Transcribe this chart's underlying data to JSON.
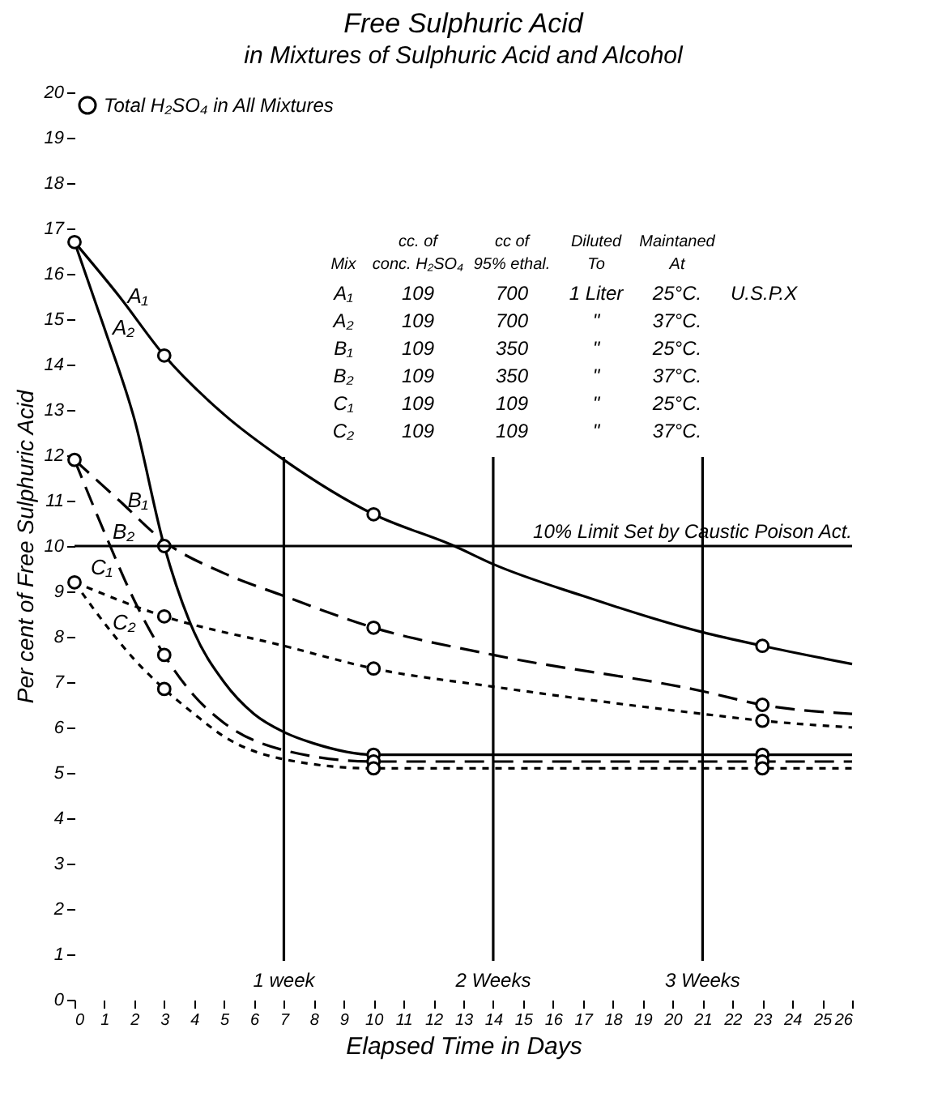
{
  "chart_data": {
    "type": "line",
    "title": "Free Sulphuric Acid",
    "subtitle": "in Mixtures of Sulphuric Acid and Alcohol",
    "xlabel": "Elapsed Time in Days",
    "ylabel": "Per cent of Free Sulphuric Acid",
    "xlim": [
      0,
      26
    ],
    "xticks": [
      0,
      1,
      2,
      3,
      4,
      5,
      6,
      7,
      8,
      9,
      10,
      11,
      12,
      13,
      14,
      15,
      16,
      17,
      18,
      19,
      20,
      21,
      22,
      23,
      24,
      25,
      26
    ],
    "ylim": [
      0,
      20
    ],
    "yticks": [
      0,
      1,
      2,
      3,
      4,
      5,
      6,
      7,
      8,
      9,
      10,
      11,
      12,
      13,
      14,
      15,
      16,
      17,
      18,
      19,
      20
    ],
    "grid": false,
    "legend": "top left",
    "series": [
      {
        "name": "A₁",
        "color": "#000000",
        "line_style": "solid",
        "x": [
          0,
          1.5,
          3,
          5,
          7,
          10,
          12.7,
          14,
          17,
          21,
          23,
          26
        ],
        "values": [
          16.7,
          15.5,
          14.2,
          12.9,
          11.9,
          10.7,
          10.0,
          9.6,
          8.9,
          8.1,
          7.8,
          7.4
        ]
      },
      {
        "name": "A₂",
        "color": "#000000",
        "line_style": "solid",
        "x": [
          0,
          1,
          2,
          3,
          4,
          5,
          6,
          7,
          8,
          10,
          14,
          23,
          26
        ],
        "values": [
          16.7,
          14.8,
          12.8,
          10.0,
          8.1,
          7.0,
          6.3,
          5.9,
          5.65,
          5.4,
          5.4,
          5.4,
          5.4
        ]
      },
      {
        "name": "B₁",
        "color": "#000000",
        "line_style": "dashed",
        "x": [
          0,
          1.5,
          3,
          5,
          7,
          10,
          14,
          21,
          23,
          26
        ],
        "values": [
          11.9,
          11.0,
          10.1,
          9.4,
          8.9,
          8.2,
          7.6,
          6.8,
          6.5,
          6.3
        ]
      },
      {
        "name": "B₂",
        "color": "#000000",
        "line_style": "dashed",
        "x": [
          0,
          1,
          2,
          3,
          4,
          5,
          7,
          10,
          14,
          23,
          26
        ],
        "values": [
          11.9,
          10.3,
          8.8,
          7.6,
          6.7,
          6.1,
          5.5,
          5.25,
          5.25,
          5.25,
          5.25
        ]
      },
      {
        "name": "C₁",
        "color": "#000000",
        "line_style": "dotted",
        "x": [
          0,
          3,
          7,
          10,
          14,
          21,
          23,
          26
        ],
        "values": [
          9.2,
          8.45,
          7.8,
          7.3,
          6.9,
          6.3,
          6.15,
          6.0
        ]
      },
      {
        "name": "C₂",
        "color": "#000000",
        "line_style": "dotted",
        "x": [
          0,
          1,
          2,
          3,
          4,
          5,
          7,
          10,
          14,
          23,
          26
        ],
        "values": [
          9.2,
          8.3,
          7.5,
          6.85,
          6.3,
          5.8,
          5.3,
          5.1,
          5.1,
          5.1,
          5.1
        ]
      },
      {
        "name": "Total H₂SO₄ in All Mixtures",
        "type": "scatter",
        "marker": "circle",
        "color": "#000000",
        "x": [
          0,
          3,
          10,
          23,
          3,
          10,
          23,
          0,
          10,
          23,
          3,
          10,
          23,
          0,
          3,
          10,
          23,
          3,
          10,
          23
        ],
        "values": [
          16.7,
          14.2,
          10.7,
          7.8,
          10.0,
          5.4,
          5.4,
          11.9,
          8.2,
          6.5,
          7.6,
          5.25,
          5.25,
          9.2,
          8.45,
          7.3,
          6.15,
          6.85,
          5.1,
          5.1
        ]
      }
    ],
    "ref_lines": [
      {
        "axis": "y",
        "value": 10,
        "label": "10% Limit Set by Caustic Poison Act."
      },
      {
        "axis": "x",
        "value": 7,
        "label": "1 week"
      },
      {
        "axis": "x",
        "value": 14,
        "label": "2 Weeks"
      },
      {
        "axis": "x",
        "value": 21,
        "label": "3 Weeks"
      }
    ],
    "annotations": [
      "cc. of",
      "cc of",
      "Diluted",
      "Maintaned",
      "Mix",
      "conc. H₂SO₄",
      "95% ethal.",
      "To",
      "At",
      "A₁",
      "109",
      "700",
      "1 Liter",
      "25°C.",
      "A₂",
      "109",
      "700",
      "\"",
      "37°C.",
      "B₁",
      "109",
      "350",
      "\"",
      "25°C.",
      "B₂",
      "109",
      "350",
      "\"",
      "37°C.",
      "C₁",
      "109",
      "109",
      "\"",
      "25°C.",
      "C₂",
      "109",
      "109",
      "\"",
      "37°C.",
      "U.S.P.X"
    ]
  }
}
